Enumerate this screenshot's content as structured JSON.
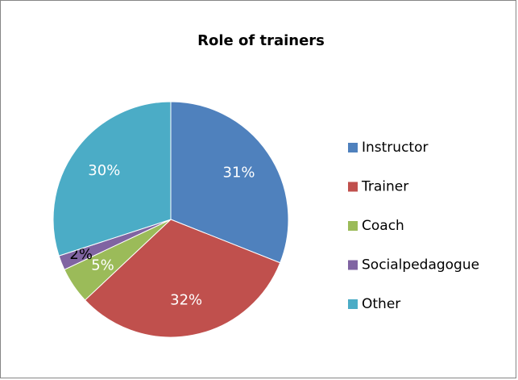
{
  "chart_data": {
    "type": "pie",
    "title": "Role of trainers",
    "categories": [
      "Instructor",
      "Trainer",
      "Coach",
      "Socialpedagogue",
      "Other"
    ],
    "values": [
      31,
      32,
      5,
      2,
      30
    ],
    "value_labels": [
      "31%",
      "32%",
      "5%",
      "2%",
      "30%"
    ],
    "colors": [
      "#4f81bd",
      "#c0504d",
      "#9bbb59",
      "#8064a2",
      "#4bacc6"
    ],
    "legend": "right"
  }
}
